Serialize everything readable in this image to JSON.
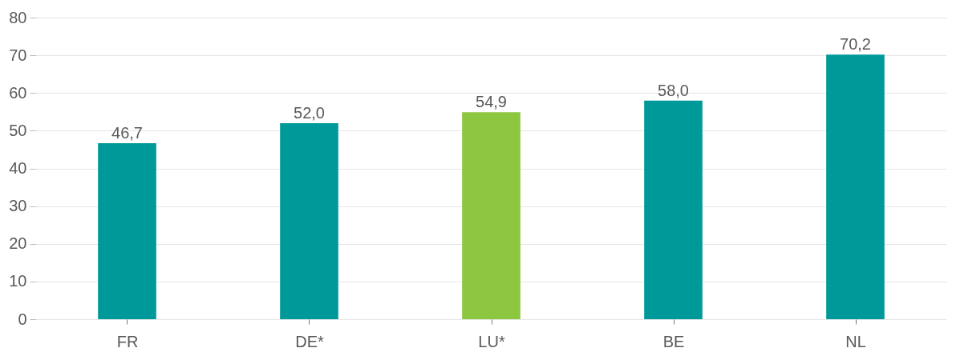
{
  "chart_data": {
    "type": "bar",
    "categories": [
      "FR",
      "DE*",
      "LU*",
      "BE",
      "NL"
    ],
    "values": [
      46.7,
      52.0,
      54.9,
      58.0,
      70.2
    ],
    "colors": [
      "#009999",
      "#009999",
      "#8dc63f",
      "#009999",
      "#009999"
    ],
    "value_labels": [
      "46,7",
      "52,0",
      "54,9",
      "58,0",
      "70,2"
    ],
    "ylim": [
      0,
      80
    ],
    "yticks": [
      0,
      10,
      20,
      30,
      40,
      50,
      60,
      70,
      80
    ],
    "grid": "y"
  }
}
